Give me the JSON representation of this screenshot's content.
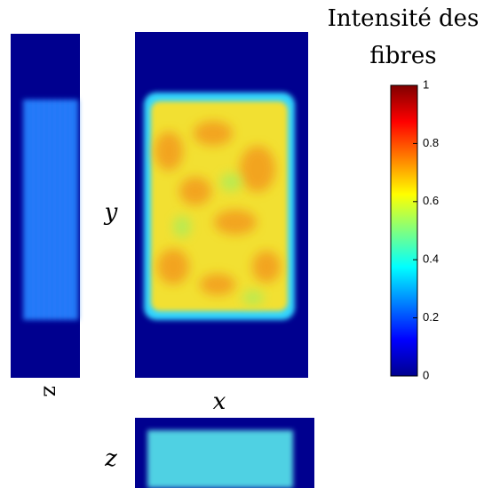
{
  "colorbar": {
    "title": [
      "Intensité des",
      "fibres"
    ],
    "lim": [
      0,
      1
    ],
    "ticks": [
      0,
      0.2,
      0.4,
      0.6,
      0.8,
      1
    ]
  },
  "panels": [
    {
      "label": "z"
    },
    {
      "label": "y",
      "xlabel": "x"
    },
    {
      "label": "z"
    }
  ]
}
